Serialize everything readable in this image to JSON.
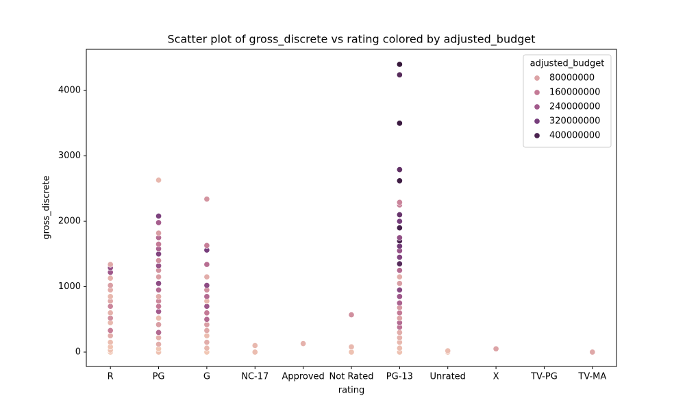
{
  "chart_data": {
    "type": "scatter",
    "title": "Scatter plot of gross_discrete vs rating colored by adjusted_budget",
    "x_label": "rating",
    "y_label": "gross_discrete",
    "categories": [
      "R",
      "PG",
      "G",
      "NC-17",
      "Approved",
      "Not Rated",
      "PG-13",
      "Unrated",
      "X",
      "TV-PG",
      "TV-MA"
    ],
    "ylim": [
      -220,
      4630
    ],
    "yticks": [
      0,
      1000,
      2000,
      3000,
      4000
    ],
    "legend": {
      "title": "adjusted_budget",
      "position": "upper right",
      "entries": [
        {
          "value": 80000000,
          "color": "#dca3a6"
        },
        {
          "value": 160000000,
          "color": "#c47a96"
        },
        {
          "value": 240000000,
          "color": "#a25a8c"
        },
        {
          "value": 320000000,
          "color": "#773e7c"
        },
        {
          "value": 400000000,
          "color": "#4b2450"
        }
      ]
    },
    "x": [
      "R",
      "R",
      "R",
      "R",
      "R",
      "R",
      "R",
      "R",
      "R",
      "R",
      "R",
      "R",
      "R",
      "R",
      "R",
      "R",
      "R",
      "R",
      "PG",
      "PG",
      "PG",
      "PG",
      "PG",
      "PG",
      "PG",
      "PG",
      "PG",
      "PG",
      "PG",
      "PG",
      "PG",
      "PG",
      "PG",
      "PG",
      "PG",
      "PG",
      "PG",
      "PG",
      "PG",
      "PG",
      "PG",
      "PG",
      "PG",
      "G",
      "G",
      "G",
      "G",
      "G",
      "G",
      "G",
      "G",
      "G",
      "G",
      "G",
      "G",
      "G",
      "G",
      "G",
      "G",
      "G",
      "G",
      "NC-17",
      "NC-17",
      "Approved",
      "Not Rated",
      "Not Rated",
      "Not Rated",
      "PG-13",
      "PG-13",
      "PG-13",
      "PG-13",
      "PG-13",
      "PG-13",
      "PG-13",
      "PG-13",
      "PG-13",
      "PG-13",
      "PG-13",
      "PG-13",
      "PG-13",
      "PG-13",
      "PG-13",
      "PG-13",
      "PG-13",
      "PG-13",
      "PG-13",
      "PG-13",
      "PG-13",
      "PG-13",
      "PG-13",
      "PG-13",
      "PG-13",
      "PG-13",
      "PG-13",
      "PG-13",
      "PG-13",
      "PG-13",
      "PG-13",
      "PG-13",
      "Unrated",
      "Unrated",
      "X",
      "TV-MA"
    ],
    "values": [
      0,
      30,
      80,
      150,
      250,
      330,
      450,
      520,
      600,
      700,
      780,
      850,
      950,
      1020,
      1130,
      1220,
      1290,
      1340,
      0,
      50,
      120,
      220,
      300,
      420,
      520,
      620,
      700,
      780,
      850,
      950,
      1050,
      1150,
      1250,
      1320,
      1400,
      1500,
      1580,
      1650,
      1750,
      1820,
      1980,
      2080,
      2630,
      0,
      60,
      150,
      250,
      330,
      420,
      500,
      600,
      700,
      780,
      850,
      950,
      1020,
      1150,
      1340,
      1560,
      1630,
      2340,
      0,
      100,
      130,
      0,
      80,
      570,
      0,
      60,
      150,
      220,
      300,
      380,
      450,
      520,
      600,
      680,
      750,
      850,
      950,
      1050,
      1150,
      1250,
      1350,
      1450,
      1550,
      1620,
      1700,
      1750,
      1900,
      2000,
      2100,
      2250,
      2290,
      2620,
      2790,
      3500,
      4240,
      4400,
      0,
      20,
      50,
      0
    ],
    "budget": [
      10000000,
      20000000,
      15000000,
      30000000,
      60000000,
      150000000,
      40000000,
      120000000,
      50000000,
      140000000,
      70000000,
      40000000,
      60000000,
      90000000,
      50000000,
      250000000,
      260000000,
      70000000,
      20000000,
      10000000,
      60000000,
      50000000,
      200000000,
      90000000,
      30000000,
      240000000,
      160000000,
      130000000,
      60000000,
      200000000,
      280000000,
      90000000,
      110000000,
      260000000,
      120000000,
      300000000,
      220000000,
      160000000,
      200000000,
      90000000,
      230000000,
      310000000,
      40000000,
      10000000,
      40000000,
      60000000,
      30000000,
      70000000,
      90000000,
      200000000,
      160000000,
      250000000,
      40000000,
      200000000,
      120000000,
      280000000,
      60000000,
      190000000,
      320000000,
      150000000,
      110000000,
      30000000,
      40000000,
      50000000,
      20000000,
      40000000,
      120000000,
      20000000,
      30000000,
      40000000,
      50000000,
      60000000,
      180000000,
      200000000,
      80000000,
      160000000,
      100000000,
      220000000,
      250000000,
      290000000,
      90000000,
      60000000,
      200000000,
      380000000,
      300000000,
      260000000,
      330000000,
      400000000,
      270000000,
      410000000,
      320000000,
      350000000,
      150000000,
      140000000,
      420000000,
      360000000,
      430000000,
      380000000,
      440000000,
      20000000,
      30000000,
      80000000,
      70000000
    ]
  }
}
